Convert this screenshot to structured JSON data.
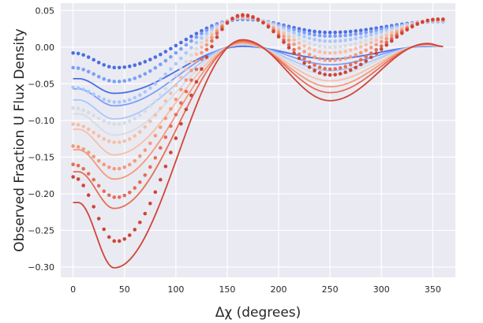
{
  "chart_data": {
    "type": "line",
    "title": "",
    "xlabel": "Δχ (degrees)",
    "ylabel": "Observed Fraction U Flux Density",
    "xlim": [
      -12,
      372
    ],
    "ylim": [
      -0.314,
      0.06
    ],
    "x_ticks": [
      0,
      50,
      100,
      150,
      200,
      250,
      300,
      350
    ],
    "x_tick_labels": [
      "0",
      "50",
      "100",
      "150",
      "200",
      "250",
      "300",
      "350"
    ],
    "y_ticks": [
      0.05,
      0.0,
      -0.05,
      -0.1,
      -0.15,
      -0.2,
      -0.25,
      -0.3
    ],
    "y_tick_labels": [
      "0.05",
      "0.00",
      "−0.05",
      "−0.10",
      "−0.15",
      "−0.20",
      "−0.25",
      "−0.30"
    ],
    "grid": true,
    "background": "#eaeaf2",
    "colormap": [
      "#4a6fe3",
      "#7b9ff9",
      "#aac7fd",
      "#d6dce4",
      "#f6bfa6",
      "#f49a7b",
      "#e46e56",
      "#cf4536"
    ],
    "solid_curves": [
      {
        "x": [
          0,
          5,
          40,
          165,
          250,
          345,
          360
        ],
        "y": [
          -0.043,
          -0.043,
          -0.063,
          0.001,
          -0.016,
          0.001,
          0.001
        ]
      },
      {
        "x": [
          0,
          5,
          40,
          165,
          250,
          345,
          360
        ],
        "y": [
          -0.057,
          -0.057,
          -0.08,
          0.003,
          -0.024,
          0.002,
          0.001
        ]
      },
      {
        "x": [
          0,
          5,
          40,
          165,
          250,
          345,
          360
        ],
        "y": [
          -0.072,
          -0.072,
          -0.098,
          0.003,
          -0.032,
          0.002,
          0.001
        ]
      },
      {
        "x": [
          0,
          5,
          40,
          165,
          250,
          345,
          360
        ],
        "y": [
          -0.091,
          -0.091,
          -0.12,
          0.004,
          -0.038,
          0.003,
          0.001
        ]
      },
      {
        "x": [
          0,
          5,
          40,
          165,
          250,
          345,
          360
        ],
        "y": [
          -0.112,
          -0.112,
          -0.147,
          0.005,
          -0.046,
          0.003,
          0.001
        ]
      },
      {
        "x": [
          0,
          5,
          40,
          165,
          250,
          345,
          360
        ],
        "y": [
          -0.14,
          -0.14,
          -0.18,
          0.006,
          -0.054,
          0.004,
          0.001
        ]
      },
      {
        "x": [
          0,
          5,
          40,
          165,
          250,
          345,
          360
        ],
        "y": [
          -0.17,
          -0.17,
          -0.22,
          0.008,
          -0.062,
          0.004,
          0.001
        ]
      },
      {
        "x": [
          0,
          5,
          40,
          165,
          250,
          345,
          360
        ],
        "y": [
          -0.212,
          -0.212,
          -0.301,
          0.01,
          -0.073,
          0.005,
          0.001
        ]
      }
    ],
    "dotted_curves": [
      {
        "x": [
          0,
          42,
          165,
          250,
          355
        ],
        "y": [
          -0.008,
          -0.028,
          0.038,
          0.02,
          0.035
        ]
      },
      {
        "x": [
          0,
          42,
          165,
          250,
          355
        ],
        "y": [
          -0.028,
          -0.047,
          0.039,
          0.015,
          0.035
        ]
      },
      {
        "x": [
          0,
          42,
          165,
          250,
          355
        ],
        "y": [
          -0.055,
          -0.075,
          0.04,
          0.008,
          0.036
        ]
      },
      {
        "x": [
          0,
          42,
          165,
          250,
          355
        ],
        "y": [
          -0.083,
          -0.105,
          0.041,
          0.0,
          0.036
        ]
      },
      {
        "x": [
          0,
          42,
          165,
          250,
          355
        ],
        "y": [
          -0.105,
          -0.13,
          0.041,
          -0.008,
          0.037
        ]
      },
      {
        "x": [
          0,
          42,
          165,
          250,
          355
        ],
        "y": [
          -0.135,
          -0.166,
          0.042,
          -0.018,
          0.037
        ]
      },
      {
        "x": [
          0,
          42,
          165,
          250,
          355
        ],
        "y": [
          -0.16,
          -0.205,
          0.043,
          -0.03,
          0.038
        ]
      },
      {
        "x": [
          0,
          42,
          165,
          250,
          355
        ],
        "y": [
          -0.177,
          -0.265,
          0.044,
          -0.038,
          0.038
        ]
      }
    ]
  }
}
